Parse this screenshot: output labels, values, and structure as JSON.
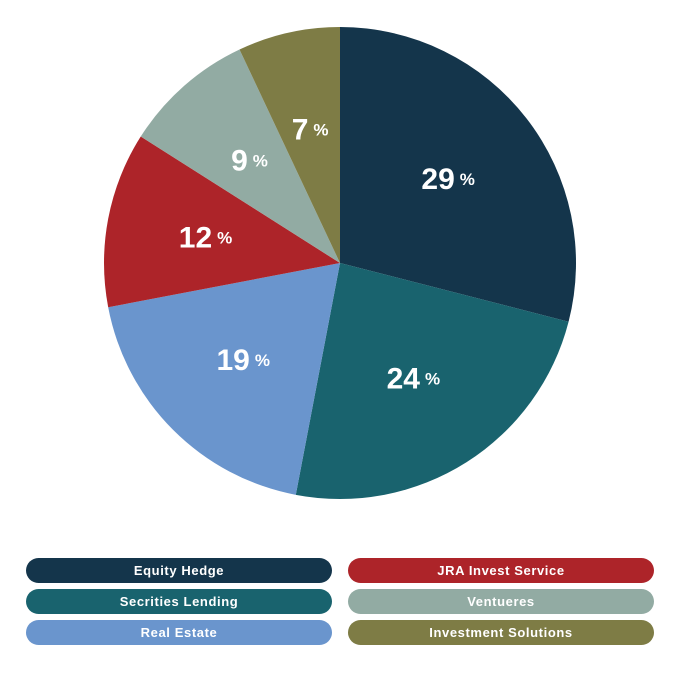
{
  "chart_data": {
    "type": "pie",
    "unit": "%",
    "slices": [
      {
        "name": "Equity Hedge",
        "value": 29,
        "color": "#14354b"
      },
      {
        "name": "Secrities Lending",
        "value": 24,
        "color": "#19636e"
      },
      {
        "name": "Real Estate",
        "value": 19,
        "color": "#6a95cd"
      },
      {
        "name": "JRA Invest Service",
        "value": 12,
        "color": "#ad2429"
      },
      {
        "name": "Ventueres",
        "value": 9,
        "color": "#92aba3"
      },
      {
        "name": "Investment Solutions",
        "value": 7,
        "color": "#7e7c45"
      }
    ],
    "legend_placement": "bottom",
    "legend_order": [
      0,
      3,
      1,
      4,
      2,
      5
    ]
  }
}
